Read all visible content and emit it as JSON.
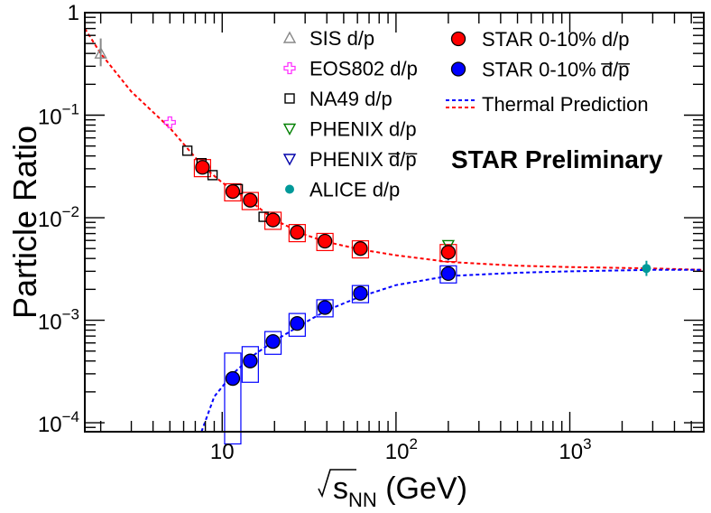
{
  "chart_data": {
    "type": "scatter",
    "title": "",
    "xlabel_prefix": "s",
    "xlabel_sub": "NN",
    "xlabel_suffix": " (GeV)",
    "ylabel": "Particle Ratio",
    "xscale": "log",
    "yscale": "log",
    "xlim": [
      1.62,
      5900
    ],
    "ylim": [
      8.17e-05,
      1.0
    ],
    "x_tick_labels": [
      {
        "value": 10,
        "base": "10",
        "exp": ""
      },
      {
        "value": 100,
        "base": "10",
        "exp": "2"
      },
      {
        "value": 1000,
        "base": "10",
        "exp": "3"
      }
    ],
    "y_tick_labels": [
      {
        "value": 1,
        "base": "1",
        "exp": ""
      },
      {
        "value": 0.1,
        "base": "10",
        "exp": "−1"
      },
      {
        "value": 0.01,
        "base": "10",
        "exp": "−2"
      },
      {
        "value": 0.001,
        "base": "10",
        "exp": "−3"
      },
      {
        "value": 0.0001,
        "base": "10",
        "exp": "−4"
      }
    ],
    "annotation": {
      "text": "STAR Preliminary",
      "color": "#ff0000"
    },
    "series": [
      {
        "name": "SIS d/p",
        "marker": "triangle-up-open",
        "color": "#888888",
        "points": [
          {
            "x": 2.0,
            "y": 0.4,
            "ylo": 0.3,
            "yhi": 0.56
          }
        ]
      },
      {
        "name": "EOS802 d/p",
        "marker": "cross-open",
        "color": "#ff33ff",
        "points": [
          {
            "x": 5.0,
            "y": 0.085
          }
        ]
      },
      {
        "name": "NA49 d/p",
        "marker": "square-open",
        "color": "#000000",
        "points": [
          {
            "x": 6.3,
            "y": 0.045
          },
          {
            "x": 7.6,
            "y": 0.034
          },
          {
            "x": 8.8,
            "y": 0.026
          },
          {
            "x": 12.3,
            "y": 0.019
          },
          {
            "x": 17.3,
            "y": 0.0102
          }
        ]
      },
      {
        "name": "PHENIX d/p",
        "marker": "triangle-down-open",
        "color": "#008000",
        "points": [
          {
            "x": 200,
            "y": 0.0054
          }
        ]
      },
      {
        "name": "PHENIX d̅/p̅",
        "marker": "triangle-down-open",
        "color": "#0000aa",
        "points": [
          {
            "x": 200,
            "y": 0.0044
          }
        ]
      },
      {
        "name": "ALICE d/p",
        "marker": "circle",
        "color": "#009999",
        "points": [
          {
            "x": 2760,
            "y": 0.0032,
            "ylo": 0.0027,
            "yhi": 0.0038
          }
        ]
      },
      {
        "name": "STAR 0-10% d/p",
        "marker": "circle-big",
        "color": "#ff0000",
        "points": [
          {
            "x": 7.7,
            "y": 0.031
          },
          {
            "x": 11.5,
            "y": 0.018
          },
          {
            "x": 14.5,
            "y": 0.0148
          },
          {
            "x": 19.6,
            "y": 0.0095
          },
          {
            "x": 27,
            "y": 0.0072
          },
          {
            "x": 39,
            "y": 0.0059
          },
          {
            "x": 62.4,
            "y": 0.005
          },
          {
            "x": 200,
            "y": 0.0046
          }
        ],
        "syst": [
          0.19,
          0.19,
          0.19,
          0.19,
          0.19,
          0.19,
          0.19,
          0.19
        ]
      },
      {
        "name": "STAR 0-10% d̅/p̅",
        "marker": "circle-big",
        "color": "#0000ff",
        "points": [
          {
            "x": 11.5,
            "y": 0.00027
          },
          {
            "x": 14.5,
            "y": 0.0004
          },
          {
            "x": 19.6,
            "y": 0.00062
          },
          {
            "x": 27,
            "y": 0.00093
          },
          {
            "x": 39,
            "y": 0.00133
          },
          {
            "x": 62.4,
            "y": 0.00183
          },
          {
            "x": 200,
            "y": 0.00285
          }
        ],
        "syst": [
          0.77,
          0.38,
          0.25,
          0.25,
          0.19,
          0.19,
          0.19
        ]
      },
      {
        "name": "Thermal Prediction (d/p)",
        "style": "dashed",
        "color": "#ff0000",
        "points": [
          {
            "x": 1.62,
            "y": 0.7
          },
          {
            "x": 2.0,
            "y": 0.4
          },
          {
            "x": 3.0,
            "y": 0.17
          },
          {
            "x": 5.0,
            "y": 0.075
          },
          {
            "x": 7.7,
            "y": 0.032
          },
          {
            "x": 10,
            "y": 0.022
          },
          {
            "x": 14.5,
            "y": 0.0145
          },
          {
            "x": 20,
            "y": 0.0095
          },
          {
            "x": 30,
            "y": 0.0068
          },
          {
            "x": 40,
            "y": 0.0058
          },
          {
            "x": 62.4,
            "y": 0.0049
          },
          {
            "x": 100,
            "y": 0.0043
          },
          {
            "x": 200,
            "y": 0.0037
          },
          {
            "x": 500,
            "y": 0.0034
          },
          {
            "x": 1000,
            "y": 0.0033
          },
          {
            "x": 3000,
            "y": 0.0032
          },
          {
            "x": 5900,
            "y": 0.0031
          }
        ]
      },
      {
        "name": "Thermal Prediction (d̅/p̅)",
        "style": "dashed",
        "color": "#0000ff",
        "points": [
          {
            "x": 7.6,
            "y": 8.17e-05
          },
          {
            "x": 9,
            "y": 0.00018
          },
          {
            "x": 11.5,
            "y": 0.0003
          },
          {
            "x": 15,
            "y": 0.00045
          },
          {
            "x": 20,
            "y": 0.00063
          },
          {
            "x": 30,
            "y": 0.00095
          },
          {
            "x": 40,
            "y": 0.00125
          },
          {
            "x": 62.4,
            "y": 0.0017
          },
          {
            "x": 100,
            "y": 0.0022
          },
          {
            "x": 200,
            "y": 0.0027
          },
          {
            "x": 500,
            "y": 0.0029
          },
          {
            "x": 1000,
            "y": 0.003
          },
          {
            "x": 3000,
            "y": 0.0031
          },
          {
            "x": 5900,
            "y": 0.0031
          }
        ]
      }
    ],
    "legend": {
      "left": [
        {
          "label": "SIS d/p",
          "marker": "triangle-up-open",
          "color": "#888888"
        },
        {
          "label": "EOS802 d/p",
          "marker": "cross-open",
          "color": "#ff33ff"
        },
        {
          "label": "NA49 d/p",
          "marker": "square-open",
          "color": "#000000"
        },
        {
          "label": "PHENIX d/p",
          "marker": "triangle-down-open",
          "color": "#008000"
        },
        {
          "label": "PHENIX d̅/p̅",
          "marker": "triangle-down-open",
          "color": "#0000aa"
        },
        {
          "label": "ALICE d/p",
          "marker": "circle",
          "color": "#009999"
        }
      ],
      "right": [
        {
          "label": "STAR 0-10% d/p",
          "marker": "circle-big",
          "color": "#ff0000"
        },
        {
          "label": "STAR 0-10% d̅/p̅",
          "marker": "circle-big",
          "color": "#0000ff"
        },
        {
          "label": "Thermal Prediction",
          "marker": "dash-pair",
          "color": "#0000ff",
          "color2": "#ff0000"
        }
      ]
    }
  }
}
